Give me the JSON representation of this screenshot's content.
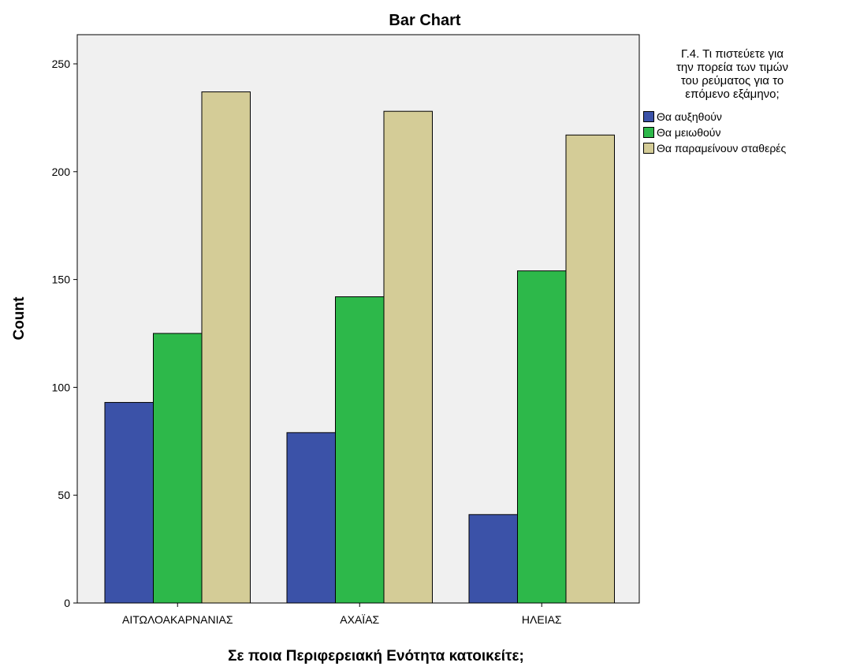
{
  "chart_data": {
    "type": "bar",
    "title": "Bar Chart",
    "xlabel": "Σε ποια Περιφερειακή Ενότητα κατοικείτε;",
    "ylabel": "Count",
    "categories": [
      "ΑΙΤΩΛΟΑΚΑΡΝΑΝΙΑΣ",
      "ΑΧΑΪΑΣ",
      "ΗΛΕΙΑΣ"
    ],
    "series": [
      {
        "name": "Θα αυξηθούν",
        "values": [
          93,
          79,
          41
        ],
        "color": "#3b52a8"
      },
      {
        "name": "Θα μειωθούν",
        "values": [
          125,
          142,
          154
        ],
        "color": "#2db84a"
      },
      {
        "name": "Θα παραμείνουν σταθερές",
        "values": [
          237,
          228,
          217
        ],
        "color": "#d4cc97"
      }
    ],
    "ylim": [
      0,
      250
    ],
    "yticks": [
      0,
      50,
      100,
      150,
      200,
      250
    ],
    "grid": false,
    "plot_background": "#f0f0f0",
    "legend": {
      "title": "Γ.4. Τι πιστεύετε για\nτην πορεία των τιμών\nτου ρεύματος για το\nεπόμενο εξάμηνο;",
      "placement": "right"
    }
  }
}
